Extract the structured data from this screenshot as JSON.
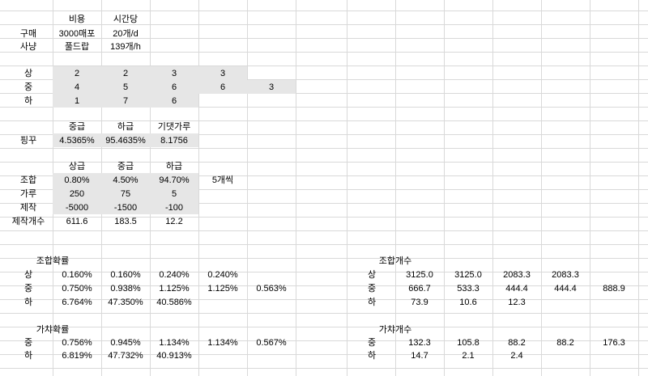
{
  "summary": {
    "headers": [
      "비용",
      "시간당"
    ],
    "rows": [
      {
        "label": "구매",
        "cost": "3000매포",
        "rate": "20개/d"
      },
      {
        "label": "사냥",
        "cost": "풀드랍",
        "rate": "139개/h"
      }
    ]
  },
  "grades": {
    "rows": [
      {
        "label": "상",
        "values": [
          "2",
          "2",
          "3",
          "3"
        ]
      },
      {
        "label": "중",
        "values": [
          "4",
          "5",
          "6",
          "6",
          "3"
        ]
      },
      {
        "label": "하",
        "values": [
          "1",
          "7",
          "6"
        ]
      }
    ]
  },
  "pinggu": {
    "headers": [
      "중급",
      "하급",
      "기댓가루"
    ],
    "label": "핑꾸",
    "values": [
      "4.5365%",
      "95.4635%",
      "8.1756"
    ]
  },
  "craft": {
    "headers": [
      "상급",
      "중급",
      "하급"
    ],
    "rows": [
      {
        "label": "조합",
        "values": [
          "0.80%",
          "4.50%",
          "94.70%"
        ],
        "note": "5개씩"
      },
      {
        "label": "가루",
        "values": [
          "250",
          "75",
          "5"
        ]
      },
      {
        "label": "제작",
        "values": [
          "-5000",
          "-1500",
          "-100"
        ]
      },
      {
        "label": "제작개수",
        "values": [
          "611.6",
          "183.5",
          "12.2"
        ]
      }
    ]
  },
  "combo_prob": {
    "title": "조합확률",
    "rows": [
      {
        "label": "상",
        "values": [
          "0.160%",
          "0.160%",
          "0.240%",
          "0.240%"
        ]
      },
      {
        "label": "중",
        "values": [
          "0.750%",
          "0.938%",
          "1.125%",
          "1.125%",
          "0.563%"
        ]
      },
      {
        "label": "하",
        "values": [
          "6.764%",
          "47.350%",
          "40.586%"
        ]
      }
    ]
  },
  "gacha_prob": {
    "title": "가챠확률",
    "rows": [
      {
        "label": "중",
        "values": [
          "0.756%",
          "0.945%",
          "1.134%",
          "1.134%",
          "0.567%"
        ]
      },
      {
        "label": "하",
        "values": [
          "6.819%",
          "47.732%",
          "40.913%"
        ]
      }
    ]
  },
  "combo_count": {
    "title": "조합개수",
    "rows": [
      {
        "label": "상",
        "values": [
          "3125.0",
          "3125.0",
          "2083.3",
          "2083.3"
        ]
      },
      {
        "label": "중",
        "values": [
          "666.7",
          "533.3",
          "444.4",
          "444.4",
          "888.9"
        ]
      },
      {
        "label": "하",
        "values": [
          "73.9",
          "10.6",
          "12.3"
        ]
      }
    ]
  },
  "gacha_count": {
    "title": "가챠개수",
    "rows": [
      {
        "label": "중",
        "values": [
          "132.3",
          "105.8",
          "88.2",
          "88.2",
          "176.3"
        ]
      },
      {
        "label": "하",
        "values": [
          "14.7",
          "2.1",
          "2.4"
        ]
      }
    ]
  }
}
